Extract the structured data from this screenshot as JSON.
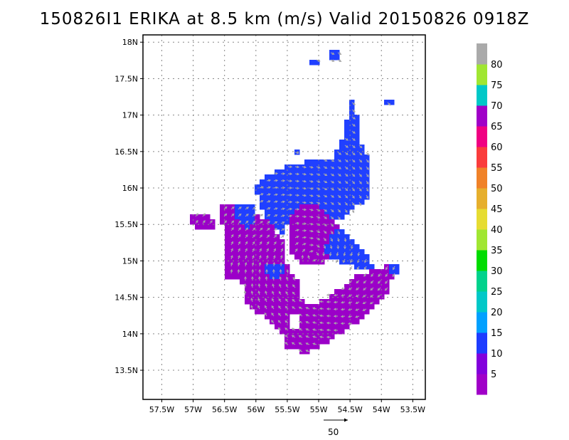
{
  "title": "150826I1 ERIKA at 8.5 km (m/s) Valid 20150826 0918Z",
  "map": {
    "lat_ticks": [
      "13.5N",
      "14N",
      "14.5N",
      "15N",
      "15.5N",
      "16N",
      "16.5N",
      "17N",
      "17.5N",
      "18N"
    ],
    "lon_ticks": [
      "57.5W",
      "57W",
      "56.5W",
      "56W",
      "55.5W",
      "55W",
      "54.5W",
      "54W",
      "53.5W"
    ],
    "lat_range": [
      13.1,
      18.1
    ],
    "lon_range": [
      -57.8,
      -53.3
    ]
  },
  "colorbar": {
    "labels": [
      "5",
      "10",
      "15",
      "20",
      "25",
      "30",
      "35",
      "40",
      "45",
      "50",
      "55",
      "60",
      "65",
      "70",
      "75",
      "80"
    ],
    "colors": [
      "#a000c8",
      "#8200dc",
      "#1e3cff",
      "#00a0ff",
      "#00c8c8",
      "#00d28c",
      "#00dc00",
      "#a0e632",
      "#e6dc32",
      "#e6af2d",
      "#f08228",
      "#fa3c3c",
      "#f00082",
      "#a000c8",
      "#00c8c8",
      "#a0e632",
      "#aaaaaa"
    ]
  },
  "vector_scale": {
    "label": "50"
  },
  "colors": {
    "purple": "#9b00c8",
    "blue": "#2040ff",
    "arrow": "#a8a8a8"
  }
}
